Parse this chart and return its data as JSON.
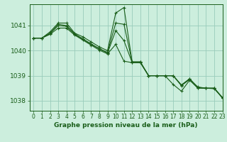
{
  "title": "Graphe pression niveau de la mer (hPa)",
  "bg_color": "#cceedd",
  "grid_color": "#99ccbb",
  "line_color": "#1a5e1a",
  "xlim": [
    -0.5,
    23
  ],
  "ylim": [
    1037.6,
    1041.85
  ],
  "yticks": [
    1038,
    1039,
    1040,
    1041
  ],
  "xticks": [
    0,
    1,
    2,
    3,
    4,
    5,
    6,
    7,
    8,
    9,
    10,
    11,
    12,
    13,
    14,
    15,
    16,
    17,
    18,
    19,
    20,
    21,
    22,
    23
  ],
  "series": [
    [
      1040.5,
      1040.5,
      1040.75,
      1041.1,
      1041.1,
      1040.7,
      1040.55,
      1040.35,
      1040.15,
      1040.0,
      1041.5,
      1041.72,
      1039.55,
      1039.55,
      1039.0,
      1039.0,
      1039.0,
      1039.0,
      1038.6,
      1038.85,
      1038.55,
      1038.5,
      1038.5,
      1038.1
    ],
    [
      1040.5,
      1040.5,
      1040.65,
      1040.9,
      1040.9,
      1040.62,
      1040.42,
      1040.22,
      1040.02,
      1039.87,
      1040.25,
      1039.58,
      1039.52,
      1039.52,
      1039.0,
      1039.0,
      1039.0,
      1039.0,
      1038.62,
      1038.87,
      1038.52,
      1038.5,
      1038.5,
      1038.12
    ],
    [
      1040.5,
      1040.5,
      1040.68,
      1041.0,
      1040.97,
      1040.65,
      1040.45,
      1040.25,
      1040.07,
      1039.9,
      1040.8,
      1040.4,
      1039.52,
      1039.52,
      1039.0,
      1039.0,
      1039.0,
      1038.65,
      1038.38,
      1038.82,
      1038.5,
      1038.5,
      1038.48,
      1038.12
    ],
    [
      1040.5,
      1040.5,
      1040.7,
      1041.05,
      1041.0,
      1040.67,
      1040.47,
      1040.27,
      1040.08,
      1039.93,
      1041.1,
      1041.05,
      1039.55,
      1039.55,
      1039.0,
      1039.0,
      1039.0,
      1039.0,
      1038.63,
      1038.88,
      1038.53,
      1038.5,
      1038.5,
      1038.13
    ]
  ]
}
